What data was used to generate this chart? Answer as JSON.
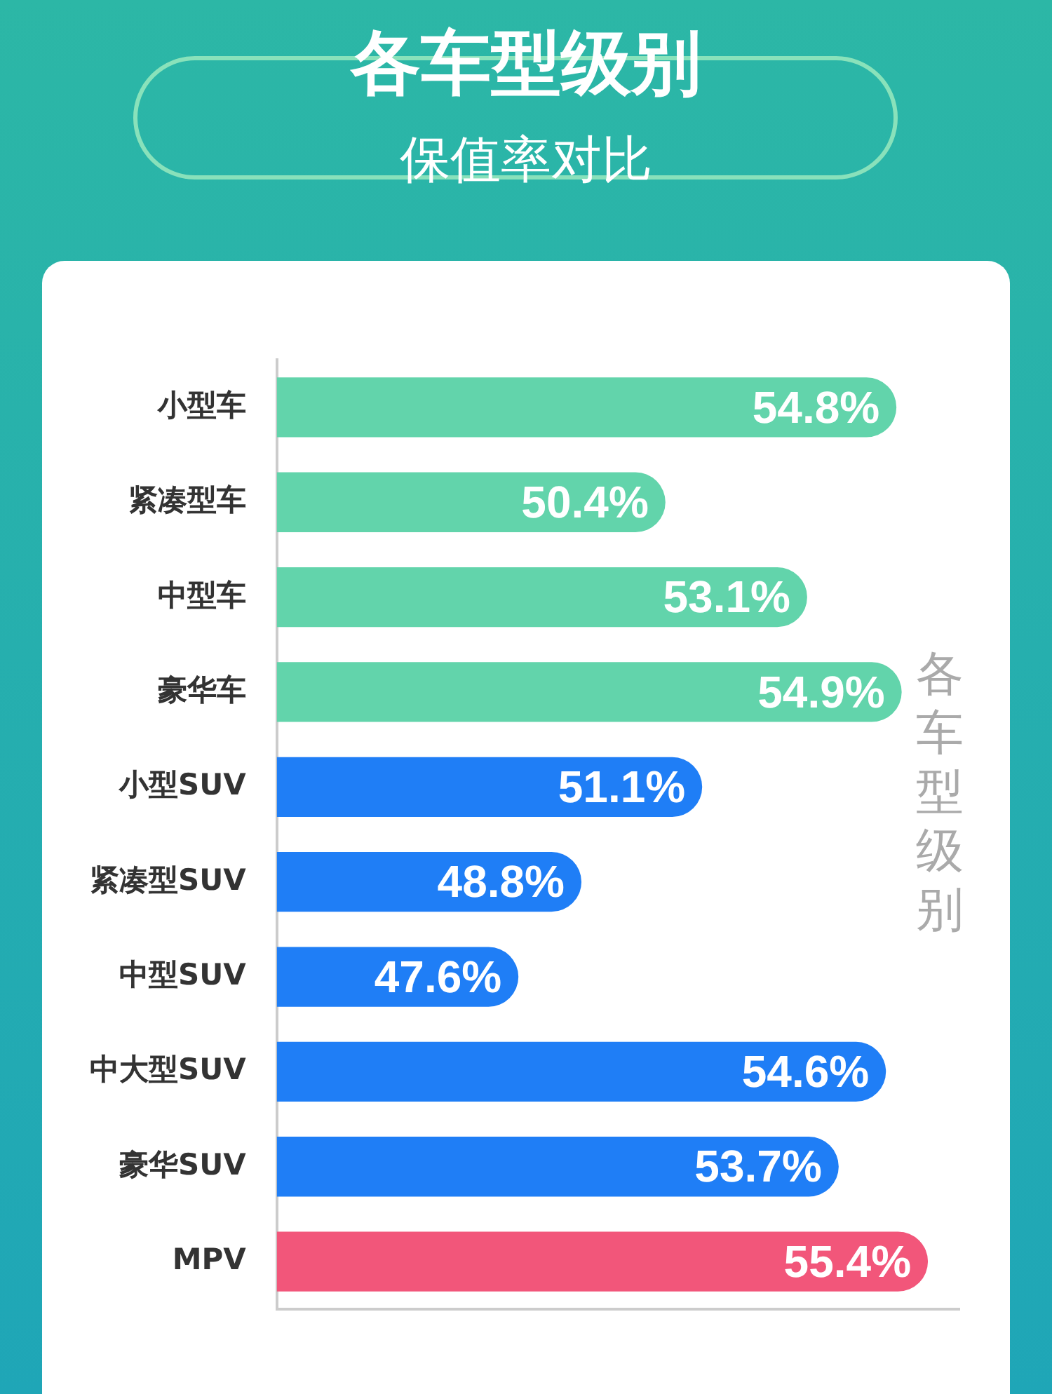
{
  "chart_data": {
    "type": "bar",
    "orientation": "horizontal",
    "title": "各车型级别",
    "subtitle": "保值率对比",
    "categories": [
      "小型车",
      "紧凑型车",
      "中型车",
      "豪华车",
      "小型SUV",
      "紧凑型SUV",
      "中型SUV",
      "中大型SUV",
      "豪华SUV",
      "MPV"
    ],
    "values": [
      54.8,
      50.4,
      53.1,
      54.9,
      51.1,
      48.8,
      47.6,
      54.6,
      53.7,
      55.4
    ],
    "value_labels": [
      "54.8%",
      "50.4%",
      "53.1%",
      "54.9%",
      "51.1%",
      "48.8%",
      "47.6%",
      "54.6%",
      "53.7%",
      "55.4%"
    ],
    "colors": [
      "#62d4ab",
      "#62d4ab",
      "#62d4ab",
      "#62d4ab",
      "#1f7ef6",
      "#1f7ef6",
      "#1f7ef6",
      "#1f7ef6",
      "#1f7ef6",
      "#f2567a"
    ],
    "xlim": [
      43,
      56
    ],
    "tick_labels": "y",
    "legend": false,
    "annotations": [
      "各车型级别"
    ]
  }
}
